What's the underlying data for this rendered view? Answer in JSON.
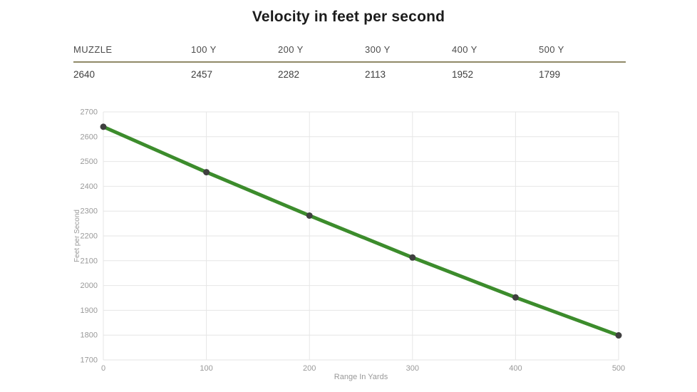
{
  "page": {
    "title": "Velocity in feet per second",
    "background": "#ffffff"
  },
  "table": {
    "headers": [
      "MUZZLE",
      "100 Y",
      "200 Y",
      "300 Y",
      "400 Y",
      "500 Y"
    ],
    "values": [
      "2640",
      "2457",
      "2282",
      "2113",
      "1952",
      "1799"
    ],
    "rule_color": "#908968"
  },
  "chart_data": {
    "type": "line",
    "title": "Velocity in feet per second",
    "x": [
      0,
      100,
      200,
      300,
      400,
      500
    ],
    "series": [
      {
        "name": "Velocity",
        "values": [
          2640,
          2457,
          2282,
          2113,
          1952,
          1799
        ]
      }
    ],
    "xlabel": "Range In Yards",
    "ylabel": "Feet per Second",
    "xlim": [
      0,
      500
    ],
    "ylim": [
      1700,
      2700
    ],
    "x_ticks": [
      0,
      100,
      200,
      300,
      400,
      500
    ],
    "y_ticks": [
      1700,
      1800,
      1900,
      2000,
      2100,
      2200,
      2300,
      2400,
      2500,
      2600,
      2700
    ],
    "grid": true,
    "legend": "none",
    "line_color": "#3c8c2c",
    "marker_color": "#3f3f3f",
    "grid_color": "#e6e6e6",
    "tick_color": "#999999"
  }
}
